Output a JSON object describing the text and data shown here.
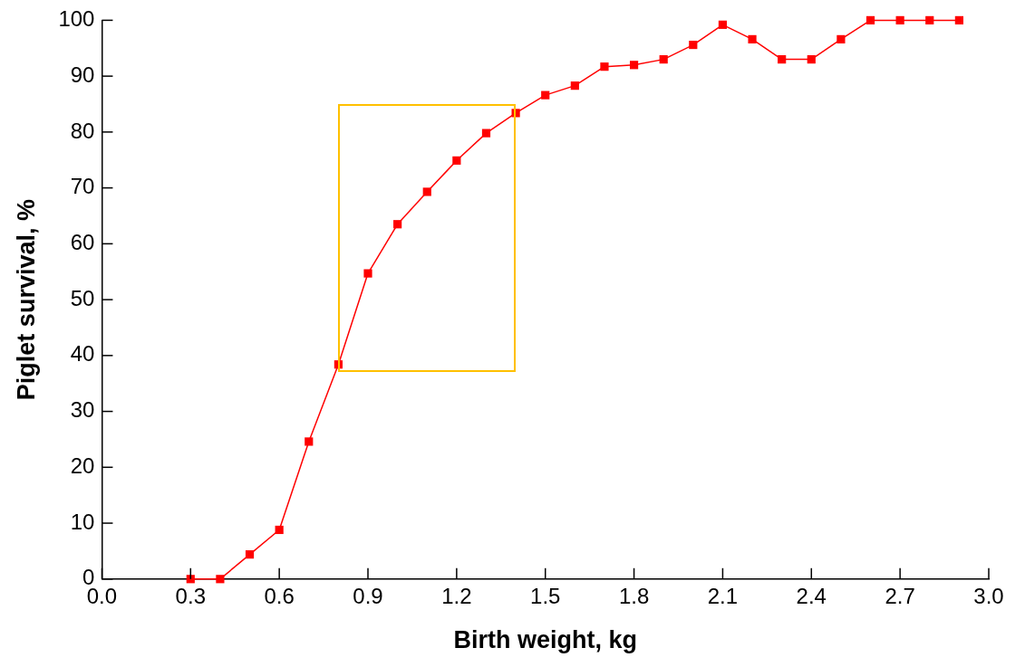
{
  "chart_data": {
    "type": "line",
    "xlabel": "Birth weight, kg",
    "ylabel": "Piglet survival, %",
    "x": [
      0.3,
      0.4,
      0.5,
      0.6,
      0.7,
      0.8,
      0.9,
      1.0,
      1.1,
      1.2,
      1.3,
      1.4,
      1.5,
      1.6,
      1.7,
      1.8,
      1.9,
      2.0,
      2.1,
      2.2,
      2.3,
      2.4,
      2.5,
      2.6,
      2.7,
      2.8,
      2.9
    ],
    "series": [
      {
        "color": "#ff0000",
        "values": [
          0,
          0,
          4.4,
          8.8,
          24.6,
          38.4,
          54.7,
          63.5,
          69.3,
          74.9,
          79.8,
          83.4,
          86.6,
          88.3,
          91.7,
          92.0,
          93.0,
          95.6,
          99.2,
          96.6,
          93.0,
          93.0,
          96.6,
          100,
          100,
          100,
          100
        ]
      }
    ],
    "xlim": [
      0,
      3.0
    ],
    "xticks": [
      {
        "value": 0,
        "label": "0.0"
      },
      0.3,
      0.6,
      0.9,
      1.2,
      1.5,
      1.8,
      2.1,
      2.4,
      2.7,
      {
        "value": 3,
        "label": "3.0"
      }
    ],
    "ylim": [
      0,
      100
    ],
    "yticks": [
      0,
      10,
      20,
      30,
      40,
      50,
      60,
      70,
      80,
      90,
      100
    ],
    "grid": false,
    "legend": false,
    "marker": "square",
    "line_style": "solid"
  }
}
